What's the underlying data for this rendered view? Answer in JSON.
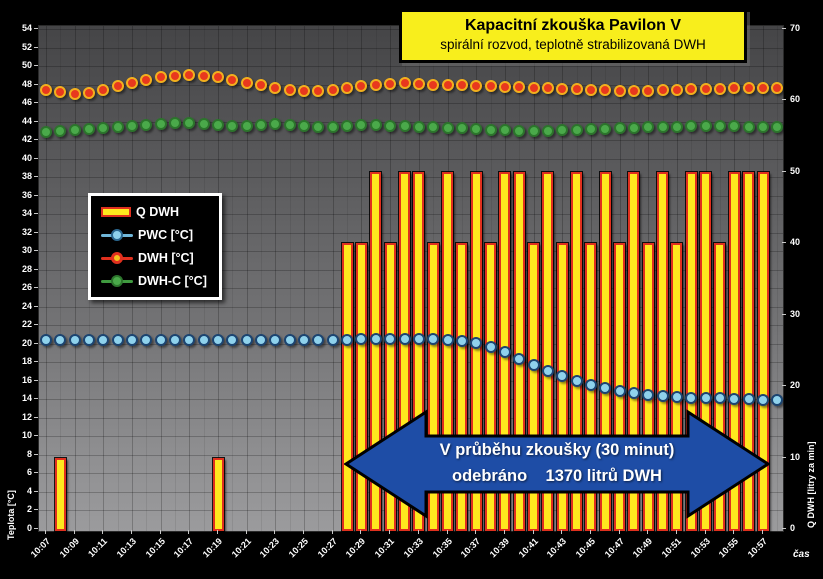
{
  "title": {
    "line1": "Kapacitní zkouška Pavilon V",
    "line2": "spirální rozvod, teplotně strabilizovaná DWH"
  },
  "legend": {
    "items": [
      {
        "label": "Q DWH",
        "marker": "bar"
      },
      {
        "label": "PWC [°C]",
        "marker": "line-dot"
      },
      {
        "label": "DWH [°C]",
        "marker": "line-dot"
      },
      {
        "label": "DWH-C [°C]",
        "marker": "line-dot"
      }
    ]
  },
  "annotation": {
    "line1": "V průběhu zkoušky (30 minut)",
    "line2": "odebráno    1370 litrů DWH"
  },
  "chart_data": {
    "type": "combo",
    "title": "Kapacitní zkouška Pavilon V",
    "subtitle": "spirální rozvod, teplotně strabilizovaná DWH",
    "axis_left": {
      "title": "Teplota [°C]",
      "min": 0,
      "max": 54,
      "step": 2
    },
    "axis_right": {
      "title": "Q DWH [litry za min]",
      "min": 0,
      "max": 70,
      "step": 10
    },
    "x_axis": {
      "title": "čas",
      "tick_labels": [
        "10:07",
        "10:09",
        "10:11",
        "10:13",
        "10:15",
        "10:17",
        "10:19",
        "10:21",
        "10:23",
        "10:25",
        "10:27",
        "10:29",
        "10:31",
        "10:33",
        "10:35",
        "10:37",
        "10:39",
        "10:41",
        "10:43",
        "10:45",
        "10:47",
        "10:49",
        "10:51",
        "10:53",
        "10:55",
        "10:57"
      ]
    },
    "x": [
      "10:07",
      "10:08",
      "10:09",
      "10:10",
      "10:11",
      "10:12",
      "10:13",
      "10:14",
      "10:15",
      "10:16",
      "10:17",
      "10:18",
      "10:19",
      "10:20",
      "10:21",
      "10:22",
      "10:23",
      "10:24",
      "10:25",
      "10:26",
      "10:27",
      "10:28",
      "10:29",
      "10:30",
      "10:31",
      "10:32",
      "10:33",
      "10:34",
      "10:35",
      "10:36",
      "10:37",
      "10:38",
      "10:39",
      "10:40",
      "10:41",
      "10:42",
      "10:43",
      "10:44",
      "10:45",
      "10:46",
      "10:47",
      "10:48",
      "10:49",
      "10:50",
      "10:51",
      "10:52",
      "10:53",
      "10:54",
      "10:55",
      "10:56",
      "10:57",
      "10:58"
    ],
    "series": [
      {
        "name": "PWC [°C]",
        "type": "scatter",
        "axis": "left",
        "color": "#8fd2ec",
        "edge": "#1c4470",
        "values": [
          20.4,
          20.4,
          20.4,
          20.4,
          20.4,
          20.4,
          20.4,
          20.4,
          20.4,
          20.4,
          20.4,
          20.4,
          20.4,
          20.4,
          20.4,
          20.4,
          20.4,
          20.4,
          20.4,
          20.4,
          20.4,
          20.4,
          20.5,
          20.5,
          20.5,
          20.5,
          20.5,
          20.5,
          20.4,
          20.3,
          20.1,
          19.7,
          19.1,
          18.4,
          17.7,
          17.1,
          16.5,
          16.0,
          15.6,
          15.2,
          14.9,
          14.7,
          14.5,
          14.4,
          14.3,
          14.2,
          14.1,
          14.1,
          14.0,
          14.0,
          13.9,
          13.9
        ]
      },
      {
        "name": "DWH [°C]",
        "type": "scatter",
        "axis": "left",
        "color": "#e8381e",
        "edge": "#f2b01e",
        "values": [
          47.4,
          47.2,
          47.0,
          47.1,
          47.4,
          47.8,
          48.2,
          48.5,
          48.8,
          48.9,
          49.0,
          48.9,
          48.8,
          48.5,
          48.2,
          47.9,
          47.6,
          47.4,
          47.3,
          47.3,
          47.4,
          47.6,
          47.8,
          48.0,
          48.1,
          48.2,
          48.1,
          48.0,
          47.9,
          47.9,
          47.8,
          47.8,
          47.7,
          47.7,
          47.6,
          47.6,
          47.5,
          47.5,
          47.4,
          47.4,
          47.3,
          47.3,
          47.3,
          47.4,
          47.4,
          47.5,
          47.5,
          47.5,
          47.6,
          47.6,
          47.6,
          47.6
        ]
      },
      {
        "name": "DWH-C [°C]",
        "type": "scatter",
        "axis": "left",
        "color": "#4aa94a",
        "edge": "#2c742c",
        "values": [
          42.9,
          43.0,
          43.1,
          43.2,
          43.3,
          43.4,
          43.5,
          43.6,
          43.7,
          43.8,
          43.8,
          43.7,
          43.6,
          43.5,
          43.5,
          43.6,
          43.7,
          43.6,
          43.5,
          43.4,
          43.4,
          43.5,
          43.6,
          43.6,
          43.5,
          43.5,
          43.4,
          43.4,
          43.3,
          43.3,
          43.2,
          43.1,
          43.1,
          43.0,
          43.0,
          43.0,
          43.1,
          43.1,
          43.2,
          43.2,
          43.3,
          43.3,
          43.4,
          43.4,
          43.4,
          43.5,
          43.5,
          43.5,
          43.5,
          43.4,
          43.4,
          43.4
        ]
      }
    ],
    "bars": {
      "name": "Q DWH",
      "type": "bar",
      "axis": "right",
      "color": "#ffe81e",
      "edge": "#e0301e",
      "points": [
        {
          "time": "10:08",
          "value": 10
        },
        {
          "time": "10:19",
          "value": 10
        },
        {
          "time": "10:28",
          "value": 40
        },
        {
          "time": "10:29",
          "value": 40
        },
        {
          "time": "10:30",
          "value": 50
        },
        {
          "time": "10:31",
          "value": 40
        },
        {
          "time": "10:32",
          "value": 50
        },
        {
          "time": "10:33",
          "value": 50
        },
        {
          "time": "10:34",
          "value": 40
        },
        {
          "time": "10:35",
          "value": 50
        },
        {
          "time": "10:36",
          "value": 40
        },
        {
          "time": "10:37",
          "value": 50
        },
        {
          "time": "10:38",
          "value": 40
        },
        {
          "time": "10:39",
          "value": 50
        },
        {
          "time": "10:40",
          "value": 50
        },
        {
          "time": "10:41",
          "value": 40
        },
        {
          "time": "10:42",
          "value": 50
        },
        {
          "time": "10:43",
          "value": 40
        },
        {
          "time": "10:44",
          "value": 50
        },
        {
          "time": "10:45",
          "value": 40
        },
        {
          "time": "10:46",
          "value": 50
        },
        {
          "time": "10:47",
          "value": 40
        },
        {
          "time": "10:48",
          "value": 50
        },
        {
          "time": "10:49",
          "value": 40
        },
        {
          "time": "10:50",
          "value": 50
        },
        {
          "time": "10:51",
          "value": 40
        },
        {
          "time": "10:52",
          "value": 50
        },
        {
          "time": "10:53",
          "value": 50
        },
        {
          "time": "10:54",
          "value": 40
        },
        {
          "time": "10:55",
          "value": 50
        },
        {
          "time": "10:56",
          "value": 50
        },
        {
          "time": "10:57",
          "value": 50
        }
      ],
      "total_litres": "1370",
      "duration_minutes": "30"
    },
    "annotation": "V průběhu zkoušky (30 minut) odebráno 1370 litrů DWH",
    "legend_position": "upper-left-inside",
    "grid": true
  }
}
